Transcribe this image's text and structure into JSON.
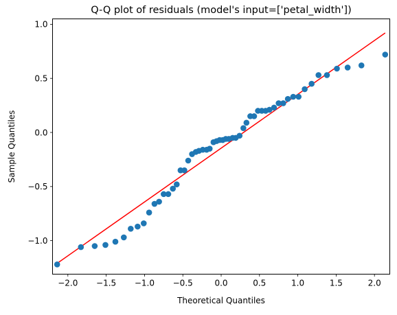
{
  "chart_data": {
    "type": "scatter",
    "title": "Q-Q plot of residuals (model's input=['petal_width'])",
    "xlabel": "Theoretical Quantiles",
    "ylabel": "Sample Quantiles",
    "xlim": [
      -2.2,
      2.2
    ],
    "ylim": [
      -1.31,
      1.05
    ],
    "x_ticks": [
      -2.0,
      -1.5,
      -1.0,
      -0.5,
      0.0,
      0.5,
      1.0,
      1.5,
      2.0
    ],
    "x_tick_labels": [
      "−2.0",
      "−1.5",
      "−1.0",
      "−0.5",
      "0.0",
      "0.5",
      "1.0",
      "1.5",
      "2.0"
    ],
    "y_ticks": [
      -1.0,
      -0.5,
      0.0,
      0.5,
      1.0
    ],
    "y_tick_labels": [
      "−1.0",
      "−0.5",
      "0.0",
      "0.5",
      "1.0"
    ],
    "grid": false,
    "colors": {
      "points": "#1f77b4",
      "reference_line": "#ff0000"
    },
    "reference_line": {
      "x": [
        -2.14,
        2.14
      ],
      "y": [
        -1.21,
        0.92
      ]
    },
    "points": {
      "x": [
        -2.14,
        -1.83,
        -1.65,
        -1.51,
        -1.38,
        -1.27,
        -1.18,
        -1.09,
        -1.01,
        -0.94,
        -0.87,
        -0.81,
        -0.75,
        -0.69,
        -0.63,
        -0.58,
        -0.53,
        -0.48,
        -0.43,
        -0.38,
        -0.33,
        -0.29,
        -0.24,
        -0.19,
        -0.15,
        -0.1,
        -0.06,
        -0.02,
        0.02,
        0.06,
        0.1,
        0.15,
        0.19,
        0.24,
        0.29,
        0.33,
        0.38,
        0.43,
        0.48,
        0.53,
        0.58,
        0.63,
        0.69,
        0.75,
        0.81,
        0.87,
        0.94,
        1.01,
        1.09,
        1.18,
        1.27,
        1.38,
        1.51,
        1.65,
        1.83,
        2.14
      ],
      "y": [
        -1.22,
        -1.06,
        -1.05,
        -1.04,
        -1.01,
        -0.97,
        -0.89,
        -0.87,
        -0.84,
        -0.74,
        -0.66,
        -0.64,
        -0.57,
        -0.57,
        -0.52,
        -0.48,
        -0.35,
        -0.35,
        -0.26,
        -0.2,
        -0.18,
        -0.17,
        -0.16,
        -0.16,
        -0.15,
        -0.09,
        -0.08,
        -0.07,
        -0.07,
        -0.06,
        -0.06,
        -0.05,
        -0.05,
        -0.03,
        0.04,
        0.09,
        0.15,
        0.15,
        0.2,
        0.2,
        0.2,
        0.21,
        0.23,
        0.27,
        0.27,
        0.31,
        0.33,
        0.33,
        0.4,
        0.45,
        0.53,
        0.53,
        0.59,
        0.6,
        0.62,
        0.72
      ]
    }
  }
}
